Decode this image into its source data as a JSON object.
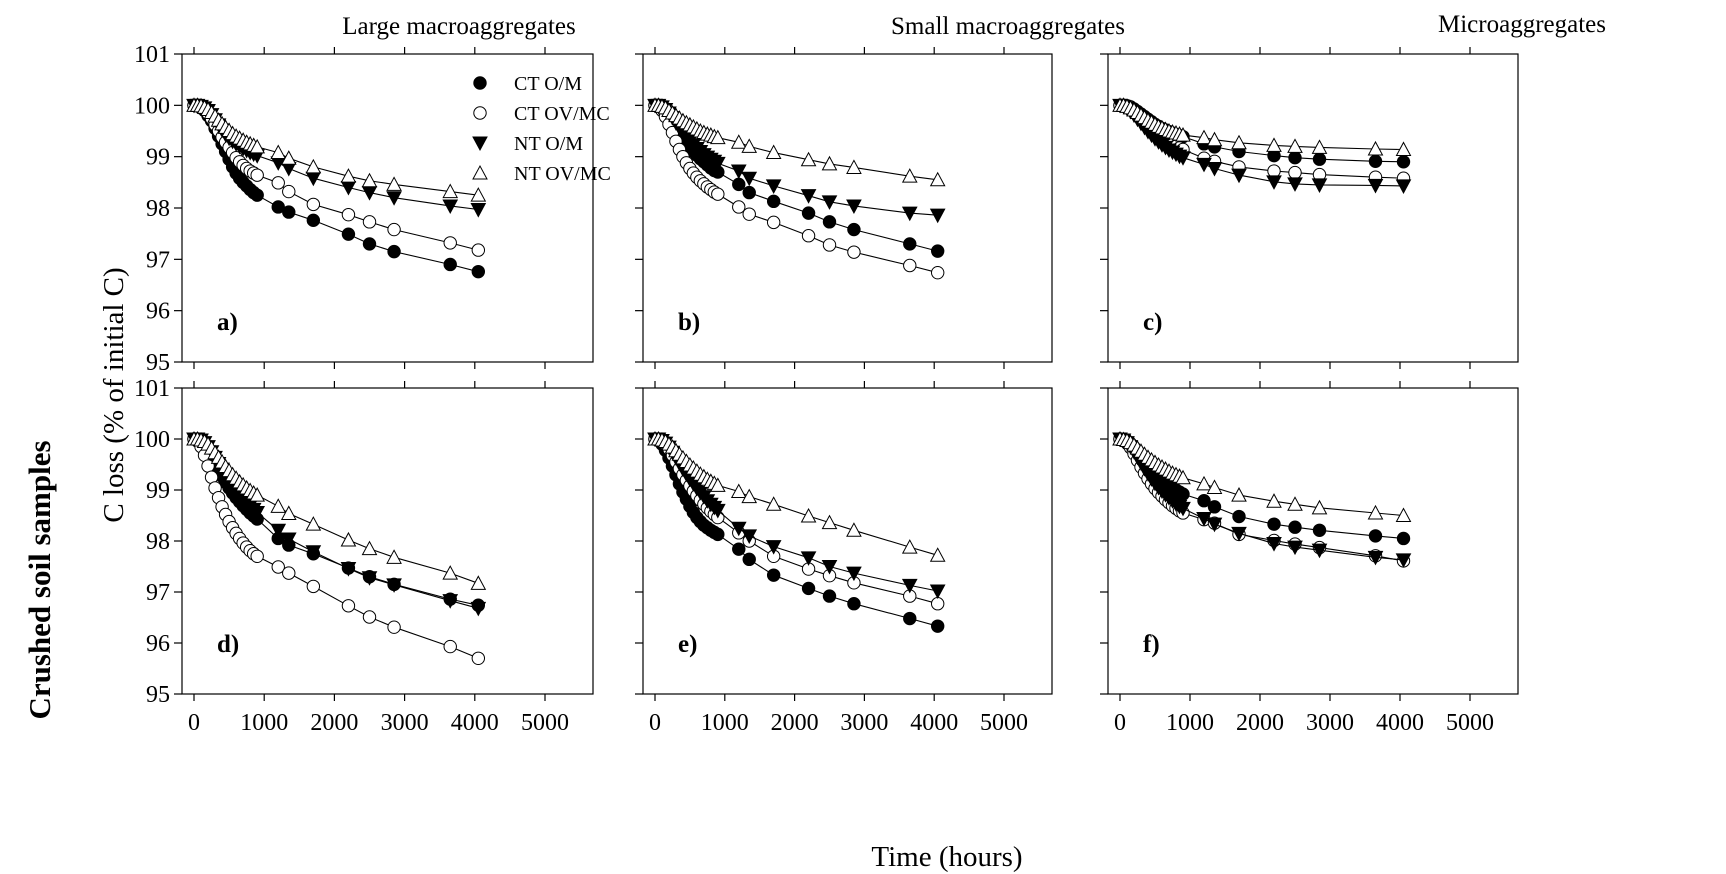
{
  "figure": {
    "row_label": "Crushed soil samples",
    "y_axis_label": "C loss (% of initial C)",
    "x_axis_label": "Time (hours)",
    "column_titles": [
      "Large macroaggregates",
      "Small macroaggregates",
      "Microaggregates"
    ]
  },
  "legend": [
    {
      "label": "CT O/M",
      "marker": "filled-circle"
    },
    {
      "label": "CT OV/MC",
      "marker": "open-circle"
    },
    {
      "label": "NT O/M",
      "marker": "filled-triangle-down"
    },
    {
      "label": "NT OV/MC",
      "marker": "open-triangle-up"
    }
  ],
  "chart_data": [
    {
      "type": "scatter",
      "panel": "a)",
      "xlabel": "",
      "ylabel": "",
      "xlim": [
        0,
        5000
      ],
      "ylim": [
        95,
        101
      ],
      "x_ticks": [],
      "y_ticks": [
        95,
        96,
        97,
        98,
        99,
        100,
        101
      ],
      "x": [
        0,
        50,
        100,
        150,
        200,
        250,
        300,
        350,
        400,
        450,
        500,
        550,
        600,
        650,
        700,
        750,
        800,
        850,
        900,
        1200,
        1350,
        1700,
        2200,
        2500,
        2850,
        3650,
        4050
      ],
      "series": [
        {
          "name": "CT O/M",
          "values": [
            100,
            100,
            99.95,
            99.9,
            99.8,
            99.7,
            99.55,
            99.4,
            99.25,
            99.1,
            98.95,
            98.8,
            98.68,
            98.58,
            98.5,
            98.43,
            98.36,
            98.3,
            98.25,
            98.02,
            97.92,
            97.76,
            97.49,
            97.3,
            97.15,
            96.9,
            96.76
          ]
        },
        {
          "name": "CT OV/MC",
          "values": [
            100,
            100,
            99.97,
            99.92,
            99.84,
            99.74,
            99.62,
            99.5,
            99.38,
            99.28,
            99.18,
            99.08,
            98.98,
            98.9,
            98.83,
            98.77,
            98.72,
            98.68,
            98.64,
            98.49,
            98.32,
            98.07,
            97.87,
            97.73,
            97.58,
            97.32,
            97.18
          ]
        },
        {
          "name": "NT O/M",
          "values": [
            100,
            100,
            99.98,
            99.95,
            99.9,
            99.82,
            99.72,
            99.62,
            99.52,
            99.43,
            99.36,
            99.3,
            99.25,
            99.2,
            99.16,
            99.12,
            99.08,
            99.05,
            99.02,
            98.88,
            98.77,
            98.58,
            98.4,
            98.3,
            98.2,
            98.04,
            97.97
          ]
        },
        {
          "name": "NT OV/MC",
          "values": [
            100,
            100,
            99.99,
            99.96,
            99.92,
            99.86,
            99.79,
            99.71,
            99.64,
            99.57,
            99.51,
            99.45,
            99.4,
            99.36,
            99.32,
            99.28,
            99.25,
            99.22,
            99.19,
            99.08,
            98.97,
            98.8,
            98.62,
            98.53,
            98.46,
            98.32,
            98.25
          ]
        }
      ]
    },
    {
      "type": "scatter",
      "panel": "b)",
      "xlabel": "",
      "ylabel": "",
      "xlim": [
        0,
        5000
      ],
      "ylim": [
        95,
        101
      ],
      "x_ticks": [],
      "y_ticks": [],
      "x": [
        0,
        50,
        100,
        150,
        200,
        250,
        300,
        350,
        400,
        450,
        500,
        550,
        600,
        650,
        700,
        750,
        800,
        850,
        900,
        1200,
        1350,
        1700,
        2200,
        2500,
        2850,
        3650,
        4050
      ],
      "series": [
        {
          "name": "CT O/M",
          "values": [
            100,
            100,
            99.96,
            99.9,
            99.8,
            99.68,
            99.55,
            99.44,
            99.35,
            99.27,
            99.18,
            99.1,
            99.03,
            98.96,
            98.9,
            98.84,
            98.78,
            98.73,
            98.7,
            98.46,
            98.3,
            98.13,
            97.9,
            97.73,
            97.58,
            97.3,
            97.16
          ]
        },
        {
          "name": "CT OV/MC",
          "values": [
            100,
            99.98,
            99.9,
            99.78,
            99.63,
            99.47,
            99.3,
            99.14,
            99.0,
            98.88,
            98.77,
            98.68,
            98.6,
            98.53,
            98.47,
            98.41,
            98.36,
            98.31,
            98.27,
            98.02,
            97.88,
            97.72,
            97.46,
            97.28,
            97.14,
            96.88,
            96.74
          ]
        },
        {
          "name": "NT O/M",
          "values": [
            100,
            100,
            99.97,
            99.92,
            99.85,
            99.76,
            99.66,
            99.56,
            99.47,
            99.38,
            99.3,
            99.23,
            99.16,
            99.1,
            99.04,
            98.99,
            98.95,
            98.91,
            98.87,
            98.72,
            98.58,
            98.43,
            98.24,
            98.12,
            98.04,
            97.9,
            97.86
          ]
        },
        {
          "name": "NT OV/MC",
          "values": [
            100,
            100,
            99.98,
            99.95,
            99.9,
            99.85,
            99.8,
            99.75,
            99.7,
            99.66,
            99.62,
            99.58,
            99.54,
            99.5,
            99.47,
            99.44,
            99.42,
            99.39,
            99.37,
            99.28,
            99.2,
            99.08,
            98.94,
            98.86,
            98.79,
            98.62,
            98.55
          ]
        }
      ]
    },
    {
      "type": "scatter",
      "panel": "c)",
      "xlabel": "",
      "ylabel": "",
      "xlim": [
        0,
        5000
      ],
      "ylim": [
        95,
        101
      ],
      "x_ticks": [],
      "y_ticks": [],
      "x": [
        0,
        50,
        100,
        150,
        200,
        250,
        300,
        350,
        400,
        450,
        500,
        550,
        600,
        650,
        700,
        750,
        800,
        850,
        900,
        1200,
        1350,
        1700,
        2200,
        2500,
        2850,
        3650,
        4050
      ],
      "series": [
        {
          "name": "CT O/M",
          "values": [
            100,
            100,
            99.99,
            99.97,
            99.93,
            99.88,
            99.83,
            99.78,
            99.73,
            99.68,
            99.63,
            99.59,
            99.55,
            99.52,
            99.49,
            99.46,
            99.43,
            99.41,
            99.39,
            99.25,
            99.19,
            99.1,
            99.02,
            98.98,
            98.95,
            98.91,
            98.9
          ]
        },
        {
          "name": "CT OV/MC",
          "values": [
            100,
            100,
            99.99,
            99.96,
            99.9,
            99.83,
            99.75,
            99.67,
            99.6,
            99.53,
            99.47,
            99.41,
            99.36,
            99.31,
            99.27,
            99.23,
            99.2,
            99.17,
            99.14,
            98.97,
            98.91,
            98.8,
            98.72,
            98.69,
            98.65,
            98.6,
            98.58
          ]
        },
        {
          "name": "NT O/M",
          "values": [
            100,
            99.98,
            99.94,
            99.88,
            99.81,
            99.73,
            99.65,
            99.57,
            99.49,
            99.42,
            99.35,
            99.29,
            99.23,
            99.18,
            99.13,
            99.09,
            99.05,
            99.01,
            98.98,
            98.85,
            98.77,
            98.64,
            98.51,
            98.47,
            98.45,
            98.44,
            98.43
          ]
        },
        {
          "name": "NT OV/MC",
          "values": [
            100,
            100,
            99.98,
            99.95,
            99.91,
            99.86,
            99.81,
            99.76,
            99.71,
            99.67,
            99.63,
            99.59,
            99.56,
            99.53,
            99.5,
            99.48,
            99.46,
            99.44,
            99.42,
            99.37,
            99.33,
            99.27,
            99.22,
            99.2,
            99.18,
            99.15,
            99.14
          ]
        }
      ]
    },
    {
      "type": "scatter",
      "panel": "d)",
      "xlabel": "",
      "ylabel": "",
      "xlim": [
        0,
        5000
      ],
      "ylim": [
        95,
        101
      ],
      "x_ticks": [
        0,
        1000,
        2000,
        3000,
        4000,
        5000
      ],
      "y_ticks": [
        95,
        96,
        97,
        98,
        99,
        100,
        101
      ],
      "x": [
        0,
        50,
        100,
        150,
        200,
        250,
        300,
        350,
        400,
        450,
        500,
        550,
        600,
        650,
        700,
        750,
        800,
        850,
        900,
        1200,
        1350,
        1700,
        2200,
        2500,
        2850,
        3650,
        4050
      ],
      "series": [
        {
          "name": "CT O/M",
          "values": [
            100,
            100,
            99.97,
            99.9,
            99.8,
            99.68,
            99.55,
            99.4,
            99.27,
            99.15,
            99.04,
            98.94,
            98.85,
            98.77,
            98.69,
            98.62,
            98.55,
            98.49,
            98.43,
            98.05,
            97.92,
            97.75,
            97.47,
            97.3,
            97.15,
            96.86,
            96.74
          ]
        },
        {
          "name": "CT OV/MC",
          "values": [
            100,
            99.96,
            99.85,
            99.68,
            99.47,
            99.25,
            99.04,
            98.85,
            98.67,
            98.52,
            98.38,
            98.26,
            98.15,
            98.05,
            97.96,
            97.88,
            97.81,
            97.75,
            97.7,
            97.49,
            97.37,
            97.11,
            96.73,
            96.51,
            96.31,
            95.93,
            95.7
          ]
        },
        {
          "name": "NT O/M",
          "values": [
            100,
            100,
            99.98,
            99.93,
            99.85,
            99.75,
            99.64,
            99.52,
            99.41,
            99.3,
            99.2,
            99.1,
            99.01,
            98.92,
            98.84,
            98.76,
            98.69,
            98.62,
            98.56,
            98.21,
            98.04,
            97.79,
            97.46,
            97.28,
            97.14,
            96.83,
            96.68
          ]
        },
        {
          "name": "NT OV/MC",
          "values": [
            100,
            100,
            99.98,
            99.95,
            99.9,
            99.82,
            99.73,
            99.64,
            99.55,
            99.46,
            99.38,
            99.3,
            99.23,
            99.16,
            99.1,
            99.04,
            98.99,
            98.94,
            98.9,
            98.68,
            98.54,
            98.33,
            98.02,
            97.85,
            97.68,
            97.37,
            97.17
          ]
        }
      ]
    },
    {
      "type": "scatter",
      "panel": "e)",
      "xlabel": "",
      "ylabel": "",
      "xlim": [
        0,
        5000
      ],
      "ylim": [
        95,
        101
      ],
      "x_ticks": [
        0,
        1000,
        2000,
        3000,
        4000,
        5000
      ],
      "y_ticks": [],
      "x": [
        0,
        50,
        100,
        150,
        200,
        250,
        300,
        350,
        400,
        450,
        500,
        550,
        600,
        650,
        700,
        750,
        800,
        850,
        900,
        1200,
        1350,
        1700,
        2200,
        2500,
        2850,
        3650,
        4050
      ],
      "series": [
        {
          "name": "CT O/M",
          "values": [
            100,
            99.98,
            99.9,
            99.78,
            99.63,
            99.47,
            99.3,
            99.12,
            98.96,
            98.82,
            98.68,
            98.56,
            98.46,
            98.38,
            98.31,
            98.26,
            98.21,
            98.17,
            98.13,
            97.84,
            97.64,
            97.33,
            97.07,
            96.92,
            96.77,
            96.48,
            96.33
          ]
        },
        {
          "name": "CT OV/MC",
          "values": [
            100,
            100,
            99.97,
            99.9,
            99.8,
            99.68,
            99.55,
            99.42,
            99.3,
            99.19,
            99.08,
            98.98,
            98.89,
            98.8,
            98.72,
            98.65,
            98.58,
            98.52,
            98.46,
            98.16,
            98.0,
            97.7,
            97.45,
            97.32,
            97.18,
            96.92,
            96.77
          ]
        },
        {
          "name": "NT O/M",
          "values": [
            100,
            100,
            99.97,
            99.92,
            99.84,
            99.74,
            99.63,
            99.52,
            99.41,
            99.31,
            99.21,
            99.12,
            99.03,
            98.95,
            98.87,
            98.79,
            98.72,
            98.66,
            98.6,
            98.25,
            98.1,
            97.89,
            97.67,
            97.5,
            97.37,
            97.13,
            97.02
          ]
        },
        {
          "name": "NT OV/MC",
          "values": [
            100,
            100,
            99.98,
            99.95,
            99.9,
            99.84,
            99.77,
            99.7,
            99.63,
            99.56,
            99.49,
            99.43,
            99.37,
            99.31,
            99.26,
            99.21,
            99.17,
            99.13,
            99.09,
            98.97,
            98.87,
            98.72,
            98.49,
            98.36,
            98.21,
            97.88,
            97.72
          ]
        }
      ]
    },
    {
      "type": "scatter",
      "panel": "f)",
      "xlabel": "",
      "ylabel": "",
      "xlim": [
        0,
        5000
      ],
      "ylim": [
        95,
        101
      ],
      "x_ticks": [
        0,
        1000,
        2000,
        3000,
        4000,
        5000
      ],
      "y_ticks": [],
      "x": [
        0,
        50,
        100,
        150,
        200,
        250,
        300,
        350,
        400,
        450,
        500,
        550,
        600,
        650,
        700,
        750,
        800,
        850,
        900,
        1200,
        1350,
        1700,
        2200,
        2500,
        2850,
        3650,
        4050
      ],
      "series": [
        {
          "name": "CT O/M",
          "values": [
            100,
            99.99,
            99.96,
            99.91,
            99.84,
            99.76,
            99.67,
            99.58,
            99.5,
            99.42,
            99.35,
            99.28,
            99.22,
            99.16,
            99.1,
            99.05,
            99.0,
            98.96,
            98.92,
            98.79,
            98.67,
            98.48,
            98.33,
            98.27,
            98.21,
            98.1,
            98.05
          ]
        },
        {
          "name": "CT OV/MC",
          "values": [
            100,
            99.98,
            99.92,
            99.83,
            99.71,
            99.58,
            99.45,
            99.33,
            99.22,
            99.12,
            99.03,
            98.95,
            98.88,
            98.81,
            98.75,
            98.69,
            98.64,
            98.59,
            98.55,
            98.42,
            98.35,
            98.13,
            98.01,
            97.94,
            97.87,
            97.71,
            97.61
          ]
        },
        {
          "name": "NT O/M",
          "values": [
            100,
            99.98,
            99.93,
            99.85,
            99.75,
            99.64,
            99.53,
            99.42,
            99.32,
            99.22,
            99.13,
            99.05,
            98.98,
            98.91,
            98.85,
            98.79,
            98.73,
            98.68,
            98.64,
            98.44,
            98.33,
            98.15,
            97.95,
            97.88,
            97.82,
            97.68,
            97.63
          ]
        },
        {
          "name": "NT OV/MC",
          "values": [
            100,
            99.99,
            99.97,
            99.93,
            99.88,
            99.82,
            99.76,
            99.7,
            99.64,
            99.59,
            99.54,
            99.49,
            99.45,
            99.41,
            99.37,
            99.33,
            99.3,
            99.27,
            99.24,
            99.12,
            99.05,
            98.9,
            98.78,
            98.72,
            98.65,
            98.55,
            98.5
          ]
        }
      ]
    }
  ]
}
